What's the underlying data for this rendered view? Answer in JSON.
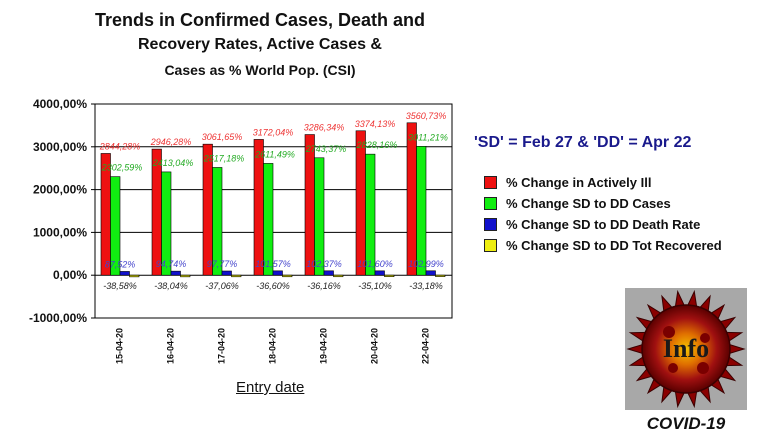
{
  "title": {
    "line1": "Trends in Confirmed Cases, Death and",
    "line2": "Recovery Rates, Active Cases &",
    "line3": "Cases as % World Pop. (CSI)"
  },
  "annotation": "'SD' = Feb 27 & 'DD' = Apr 22",
  "logo": {
    "text": "Info",
    "caption": "COVID-19",
    "icon": "virus-icon"
  },
  "chart_data": {
    "type": "bar",
    "xlabel": "Entry date",
    "ylabel": "",
    "ylim": [
      -1000,
      4000
    ],
    "yticks": [
      -1000,
      0,
      1000,
      2000,
      3000,
      4000
    ],
    "ytick_labels": [
      "-1000,00%",
      "0,00%",
      "1000,00%",
      "2000,00%",
      "3000,00%",
      "4000,00%"
    ],
    "grid": true,
    "legend_position": "right",
    "categories": [
      "15-04-20",
      "16-04-20",
      "17-04-20",
      "18-04-20",
      "19-04-20",
      "20-04-20",
      "22-04-20"
    ],
    "series": [
      {
        "name": "% Change in Actively Ill",
        "color": "#ee1111",
        "label_color": "#ee3333",
        "values": [
          2844.28,
          2946.28,
          3061.65,
          3172.04,
          3286.34,
          3374.13,
          3560.73
        ],
        "labels": [
          "2844,28%",
          "2946,28%",
          "3061,65%",
          "3172,04%",
          "3286,34%",
          "3374,13%",
          "3560,73%"
        ]
      },
      {
        "name": "% Change SD to DD Cases",
        "color": "#11ee11",
        "label_color": "#22aa22",
        "values": [
          2302.59,
          2413.04,
          2517.18,
          2611.49,
          2743.37,
          2828.16,
          3011.21
        ],
        "labels": [
          "2302,59%",
          "2413,04%",
          "2517,18%",
          "2611,49%",
          "2743,37%",
          "2828,16%",
          "3011,21%"
        ]
      },
      {
        "name": "% Change SD to DD Death Rate",
        "color": "#1111cc",
        "label_color": "#4444cc",
        "values": [
          87.52,
          94.74,
          97.77,
          101.57,
          102.37,
          101.6,
          102.99
        ],
        "labels": [
          "87,52%",
          "94,74%",
          "97,77%",
          "101,57%",
          "102,37%",
          "101,60%",
          "102,99%"
        ]
      },
      {
        "name": "% Change SD to DD Tot Recovered",
        "color": "#eeee11",
        "label_color": "#222222",
        "values": [
          -38.58,
          -38.04,
          -37.06,
          -36.6,
          -36.16,
          -35.1,
          -33.18
        ],
        "labels": [
          "-38,58%",
          "-38,04%",
          "-37,06%",
          "-36,60%",
          "-36,16%",
          "-35,10%",
          "-33,18%"
        ]
      }
    ]
  }
}
